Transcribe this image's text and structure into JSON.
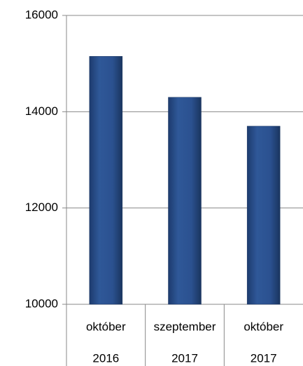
{
  "chart_data": {
    "type": "bar",
    "categories": [
      [
        "október",
        "2016"
      ],
      [
        "szeptember",
        "2017"
      ],
      [
        "október",
        "2017"
      ]
    ],
    "values": [
      15150,
      14300,
      13700
    ],
    "color": "#2b5190",
    "ylim": [
      10000,
      16000
    ],
    "yticks": [
      10000,
      12000,
      14000,
      16000
    ],
    "grid": true
  }
}
